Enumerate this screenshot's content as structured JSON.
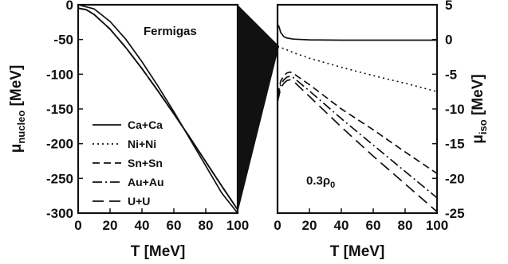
{
  "chart_data": [
    {
      "type": "line",
      "panel": "left",
      "annotation": "Fermigas",
      "xlabel": "T [MeV]",
      "ylabel_main": "μ",
      "ylabel_sub": "nucleo",
      "ylabel_unit": " [MeV]",
      "xlim": [
        0,
        100
      ],
      "ylim": [
        -300,
        0
      ],
      "x_ticks": [
        "0",
        "20",
        "40",
        "60",
        "80",
        "100"
      ],
      "y_ticks": [
        "0",
        "-50",
        "-100",
        "-150",
        "-200",
        "-250",
        "-300"
      ],
      "x_tick_values": [
        0,
        20,
        40,
        60,
        80,
        100
      ],
      "y_tick_values": [
        0,
        -50,
        -100,
        -150,
        -200,
        -250,
        -300
      ],
      "legend_position": "bottom-left",
      "series": [
        {
          "name": "Ca+Ca",
          "dash": "solid",
          "x": [
            0,
            5,
            10,
            20,
            30,
            40,
            50,
            60,
            70,
            80,
            90,
            100
          ],
          "y": [
            -5,
            -7,
            -14,
            -35,
            -62,
            -92,
            -124,
            -157,
            -191,
            -226,
            -261,
            -295
          ]
        },
        {
          "name": "Ni+Ni",
          "dash": "dotted",
          "x": [
            0,
            5,
            10,
            20,
            30,
            40,
            50,
            60,
            70,
            80,
            90,
            100
          ],
          "y": [
            -5,
            -7,
            -14,
            -35,
            -62,
            -92,
            -124,
            -157,
            -191,
            -226,
            -261,
            -295
          ]
        },
        {
          "name": "Sn+Sn",
          "dash": "dashed",
          "x": [
            0,
            5,
            10,
            20,
            30,
            40,
            50,
            60,
            70,
            80,
            90,
            100
          ],
          "y": [
            -5,
            -7,
            -14,
            -35,
            -62,
            -92,
            -124,
            -157,
            -191,
            -226,
            -261,
            -295
          ]
        },
        {
          "name": "Au+Au",
          "dash": "dashdot",
          "x": [
            0,
            5,
            10,
            20,
            30,
            40,
            50,
            60,
            70,
            80,
            90,
            100
          ],
          "y": [
            -5,
            -7,
            -14,
            -35,
            -62,
            -92,
            -124,
            -157,
            -191,
            -226,
            -261,
            -295
          ]
        },
        {
          "name": "U+U",
          "dash": "longdash",
          "x": [
            0,
            5,
            10,
            20,
            30,
            40,
            50,
            60,
            70,
            80,
            90,
            100
          ],
          "y": [
            -5,
            -7,
            -14,
            -35,
            -62,
            -92,
            -124,
            -157,
            -191,
            -226,
            -261,
            -295
          ]
        },
        {
          "name": "",
          "dash": "solid",
          "x": [
            0,
            10,
            20,
            30,
            40,
            50,
            60,
            70,
            80,
            90,
            100
          ],
          "y": [
            0,
            -6,
            -24,
            -50,
            -82,
            -117,
            -154,
            -193,
            -232,
            -271,
            -300
          ]
        }
      ]
    },
    {
      "type": "line",
      "panel": "right",
      "annotation_main": "0.3ρ",
      "annotation_sub": "0",
      "xlabel": "T [MeV]",
      "ylabel_main": "μ",
      "ylabel_sub": "iso",
      "ylabel_unit": " [MeV]",
      "xlim": [
        0,
        100
      ],
      "ylim": [
        -25,
        5
      ],
      "x_ticks": [
        "0",
        "20",
        "40",
        "60",
        "80",
        "100"
      ],
      "y_ticks": [
        "5",
        "0",
        "-5",
        "-10",
        "-15",
        "-20",
        "-25"
      ],
      "x_tick_values": [
        0,
        20,
        40,
        60,
        80,
        100
      ],
      "y_tick_values": [
        5,
        0,
        -5,
        -10,
        -15,
        -20,
        -25
      ],
      "series": [
        {
          "name": "Ca+Ca",
          "dash": "solid",
          "x": [
            0,
            1,
            2,
            4,
            6,
            10,
            15,
            20,
            40,
            60,
            80,
            100
          ],
          "y": [
            2.2,
            1.8,
            1.0,
            0.4,
            0.2,
            0.05,
            0.0,
            -0.05,
            -0.1,
            -0.1,
            -0.1,
            -0.1
          ]
        },
        {
          "name": "Ni+Ni",
          "dash": "dotted",
          "x": [
            0,
            5,
            10,
            20,
            40,
            60,
            80,
            100
          ],
          "y": [
            -1.0,
            -1.4,
            -1.9,
            -2.7,
            -4.0,
            -5.2,
            -6.3,
            -7.5
          ]
        },
        {
          "name": "Sn+Sn",
          "dash": "dashed",
          "x": [
            0,
            2,
            4,
            6,
            8,
            10,
            20,
            40,
            60,
            80,
            100
          ],
          "y": [
            -8.0,
            -6.0,
            -5.2,
            -4.8,
            -4.7,
            -4.9,
            -6.5,
            -10.0,
            -13.0,
            -16.2,
            -19.3
          ]
        },
        {
          "name": "Au+Au",
          "dash": "dashdot",
          "x": [
            0,
            2,
            4,
            6,
            8,
            10,
            20,
            40,
            60,
            80,
            100
          ],
          "y": [
            -8.5,
            -6.5,
            -5.8,
            -5.4,
            -5.3,
            -5.5,
            -7.4,
            -11.4,
            -15.2,
            -19.0,
            -22.8
          ]
        },
        {
          "name": "U+U",
          "dash": "longdash",
          "x": [
            0,
            2,
            4,
            6,
            8,
            10,
            20,
            40,
            60,
            80,
            100
          ],
          "y": [
            -9.0,
            -7.0,
            -6.3,
            -5.9,
            -5.8,
            -6.0,
            -8.2,
            -12.6,
            -16.8,
            -20.8,
            -24.8
          ]
        }
      ]
    }
  ]
}
